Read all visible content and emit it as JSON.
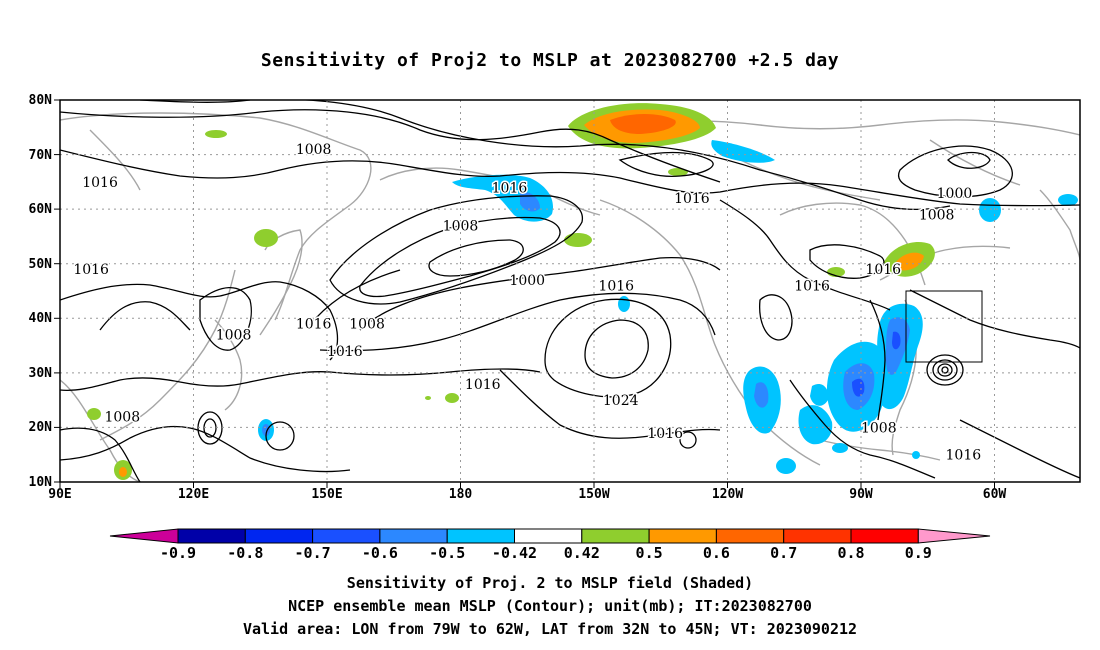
{
  "title": "Sensitivity of Proj2 to MSLP at 2023082700 +2.5 day",
  "lat_labels": [
    "80N",
    "70N",
    "60N",
    "50N",
    "40N",
    "30N",
    "20N",
    "10N"
  ],
  "lon_labels": [
    "90E",
    "120E",
    "150E",
    "180",
    "150W",
    "120W",
    "90W",
    "60W"
  ],
  "contour_labels": [
    {
      "text": "1008",
      "lon": 147,
      "lat": 71
    },
    {
      "text": "1016",
      "lon": 99,
      "lat": 65
    },
    {
      "text": "1016",
      "lon": 191,
      "lat": 64
    },
    {
      "text": "1016",
      "lon": 232,
      "lat": 62
    },
    {
      "text": "1000",
      "lon": 291,
      "lat": 63
    },
    {
      "text": "1008",
      "lon": 287,
      "lat": 59
    },
    {
      "text": "1008",
      "lon": 180,
      "lat": 57
    },
    {
      "text": "1016",
      "lon": 97,
      "lat": 49
    },
    {
      "text": "1000",
      "lon": 195,
      "lat": 47
    },
    {
      "text": "1016",
      "lon": 215,
      "lat": 46
    },
    {
      "text": "1016",
      "lon": 259,
      "lat": 46
    },
    {
      "text": "1016",
      "lon": 275,
      "lat": 49
    },
    {
      "text": "1008",
      "lon": 129,
      "lat": 37
    },
    {
      "text": "1016",
      "lon": 147,
      "lat": 39
    },
    {
      "text": "1008",
      "lon": 159,
      "lat": 39
    },
    {
      "text": "1016",
      "lon": 154,
      "lat": 34
    },
    {
      "text": "1016",
      "lon": 185,
      "lat": 28
    },
    {
      "text": "1024",
      "lon": 216,
      "lat": 25
    },
    {
      "text": "1008",
      "lon": 104,
      "lat": 22
    },
    {
      "text": "1008",
      "lon": 274,
      "lat": 20
    },
    {
      "text": "1016",
      "lon": 226,
      "lat": 19
    },
    {
      "text": "1016",
      "lon": 293,
      "lat": 15
    }
  ],
  "colorbar": {
    "labels": [
      "-0.9",
      "-0.8",
      "-0.7",
      "-0.6",
      "-0.5",
      "-0.42",
      "0.42",
      "0.5",
      "0.6",
      "0.7",
      "0.8",
      "0.9"
    ],
    "colors": [
      "#0000a8",
      "#0026f0",
      "#1a50ff",
      "#2c88ff",
      "#00c4ff",
      "#ffffff",
      "#8fce2e",
      "#ff9900",
      "#ff6600",
      "#ff3300",
      "#ff0000"
    ],
    "low_end": "#cc0099",
    "high_end": "#ff99cc"
  },
  "captions": {
    "line1": "Sensitivity of Proj. 2 to MSLP field (Shaded)",
    "line2": "NCEP ensemble mean MSLP (Contour); unit(mb); IT:2023082700",
    "line3": "Valid area: LON from 79W to 62W, LAT from 32N to 45N; VT: 2023090212"
  }
}
